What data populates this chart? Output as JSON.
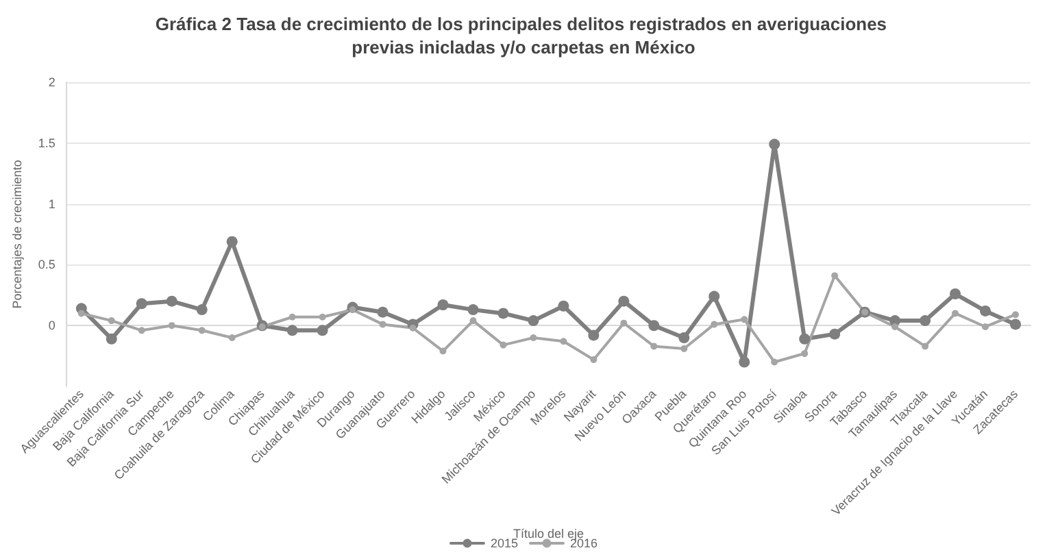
{
  "chart_data": {
    "type": "line",
    "title": "Gráfica 2 Tasa de crecimiento de los principales delitos registrados en averiguaciones previas inicladas y/o carpetas en México",
    "xlabel": "Título del eje",
    "ylabel": "Porcentajes de crecimiento",
    "categories": [
      "Aguascalientes",
      "Baja California",
      "Baja California Sur",
      "Campeche",
      "Coahuila de Zaragoza",
      "Colima",
      "Chiapas",
      "Chihuahua",
      "Ciudad de México",
      "Durango",
      "Guanajuato",
      "Guerrero",
      "Hidalgo",
      "Jalisco",
      "México",
      "Michoacán de Ocampo",
      "Morelos",
      "Nayarit",
      "Nuevo León",
      "Oaxaca",
      "Puebla",
      "Querétaro",
      "Quintana Roo",
      "San Luis Potosí",
      "Sinaloa",
      "Sonora",
      "Tabasco",
      "Tamaulipas",
      "Tlaxcala",
      "Veracruz de Ignacio de la Llave",
      "Yucatán",
      "Zacatecas"
    ],
    "series": [
      {
        "name": "2015",
        "color": "#7f7f7f",
        "values": [
          0.14,
          -0.11,
          0.18,
          0.2,
          0.13,
          0.69,
          0.0,
          -0.04,
          -0.04,
          0.15,
          0.11,
          0.01,
          0.17,
          0.13,
          0.1,
          0.04,
          0.16,
          -0.08,
          0.2,
          0.0,
          -0.1,
          0.24,
          -0.3,
          1.49,
          -0.11,
          -0.07,
          0.11,
          0.04,
          0.04,
          0.26,
          0.12,
          0.01
        ]
      },
      {
        "name": "2016",
        "color": "#a5a5a5",
        "values": [
          0.1,
          0.04,
          -0.04,
          0.0,
          -0.04,
          -0.1,
          -0.01,
          0.07,
          0.07,
          0.13,
          0.01,
          -0.02,
          -0.21,
          0.04,
          -0.16,
          -0.1,
          -0.13,
          -0.28,
          0.02,
          -0.17,
          -0.19,
          0.01,
          0.05,
          -0.3,
          -0.23,
          0.41,
          0.11,
          -0.01,
          -0.17,
          0.1,
          -0.01,
          0.09
        ]
      }
    ],
    "ylim": [
      -0.5,
      2
    ],
    "yticks": [
      0,
      0.5,
      1,
      1.5,
      2
    ],
    "grid": "y",
    "legend": "bottom",
    "marker": "circle",
    "line_style": "solid"
  }
}
